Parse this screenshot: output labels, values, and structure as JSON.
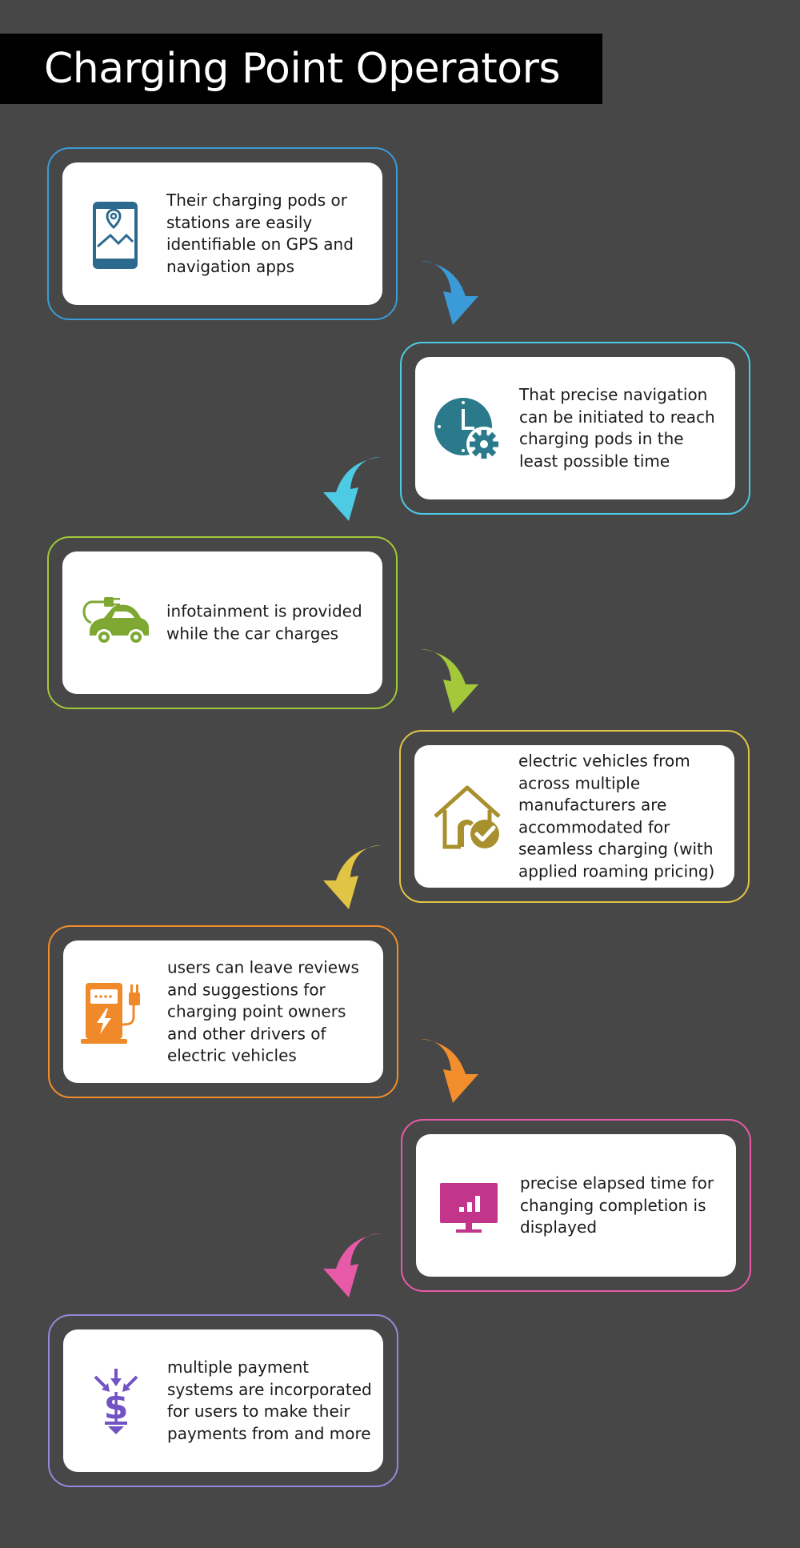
{
  "title": "Charging Point Operators",
  "steps": [
    {
      "text": "Their charging pods or stations are easily identifiable on GPS and navigation apps",
      "color": "#3b9bd8",
      "icon": "tablet-map-icon"
    },
    {
      "text": "That precise navigation can be initiated to reach charging pods in the least possible time",
      "color": "#4dcbe4",
      "icon": "clock-gear-icon"
    },
    {
      "text": "infotainment is provided while the car charges",
      "color": "#a3c83a",
      "icon": "electric-car-icon"
    },
    {
      "text": "electric vehicles from across multiple manufacturers are accommodated for seamless charging (with applied roaming pricing)",
      "color": "#e2c445",
      "icon": "house-check-icon"
    },
    {
      "text": "users can leave reviews and suggestions for charging point owners and other drivers of electric vehicles",
      "color": "#f28e2b",
      "icon": "charging-station-icon"
    },
    {
      "text": "precise elapsed time for changing completion is displayed",
      "color": "#e85aa8",
      "icon": "monitor-chart-icon"
    },
    {
      "text": "multiple payment systems are incorporated for users to make their payments from and more",
      "color": "#9a85dc",
      "icon": "dollar-arrows-icon"
    }
  ],
  "icon_colors": {
    "tablet-map-icon": "#2b6a8e",
    "clock-gear-icon": "#2b7a8c",
    "electric-car-icon": "#7fa832",
    "house-check-icon": "#a9902e",
    "charging-station-icon": "#f0892a",
    "monitor-chart-icon": "#c2358a",
    "dollar-arrows-icon": "#7253c4"
  }
}
